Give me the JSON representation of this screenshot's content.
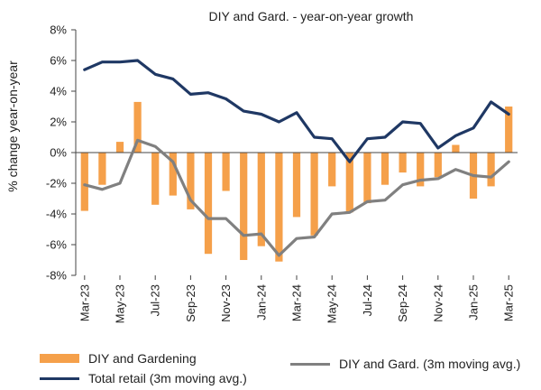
{
  "chart_data": {
    "type": "bar",
    "title": "DIY and Gard. - year-on-year  growth",
    "ylabel": "% change year-on-year",
    "ylim": [
      -8,
      8
    ],
    "yticks": [
      -8,
      -6,
      -4,
      -2,
      0,
      2,
      4,
      6,
      8
    ],
    "ytick_labels": [
      "-8%",
      "-6%",
      "-4%",
      "-2%",
      "0%",
      "2%",
      "4%",
      "6%",
      "8%"
    ],
    "categories": [
      "Mar-23",
      "Apr-23",
      "May-23",
      "Jun-23",
      "Jul-23",
      "Aug-23",
      "Sep-23",
      "Oct-23",
      "Nov-23",
      "Dec-23",
      "Jan-24",
      "Feb-24",
      "Mar-24",
      "Apr-24",
      "May-24",
      "Jun-24",
      "Jul-24",
      "Aug-24",
      "Sep-24",
      "Oct-24",
      "Nov-24",
      "Dec-24",
      "Jan-25",
      "Feb-25",
      "Mar-25"
    ],
    "xtick_labels": [
      "Mar-23",
      "May-23",
      "Jul-23",
      "Sep-23",
      "Nov-23",
      "Jan-24",
      "Mar-24",
      "May-24",
      "Jul-24",
      "Sep-24",
      "Nov-24",
      "Jan-25",
      "Mar-25"
    ],
    "series": [
      {
        "name": "DIY and Gardening",
        "kind": "bar",
        "color": "#f5a04a",
        "values": [
          -3.8,
          -2.1,
          0.7,
          3.3,
          -3.4,
          -2.8,
          -3.7,
          -6.6,
          -2.5,
          -7.0,
          -6.1,
          -7.1,
          -4.2,
          -5.4,
          -2.2,
          -3.9,
          -3.3,
          -2.1,
          -1.3,
          -2.2,
          -1.6,
          0.5,
          -3.0,
          -2.2,
          3.0
        ]
      },
      {
        "name": "DIY and Gard. (3m moving avg.)",
        "kind": "line",
        "color": "#808080",
        "values": [
          -2.1,
          -2.4,
          -2.0,
          0.8,
          0.4,
          -0.6,
          -3.1,
          -4.3,
          -4.3,
          -5.4,
          -5.3,
          -6.7,
          -5.6,
          -5.5,
          -4.0,
          -3.9,
          -3.2,
          -3.1,
          -2.1,
          -1.8,
          -1.7,
          -1.1,
          -1.5,
          -1.6,
          -0.6
        ]
      },
      {
        "name": "Total retail (3m moving avg.)",
        "kind": "line",
        "color": "#1f3864",
        "values": [
          5.4,
          5.9,
          5.9,
          6.0,
          5.1,
          4.8,
          3.8,
          3.9,
          3.5,
          2.7,
          2.5,
          2.0,
          2.6,
          1.0,
          0.9,
          -0.6,
          0.9,
          1.0,
          2.0,
          1.9,
          0.3,
          1.1,
          1.6,
          3.3,
          2.5
        ]
      }
    ],
    "grid": false,
    "legend": "bottom"
  }
}
